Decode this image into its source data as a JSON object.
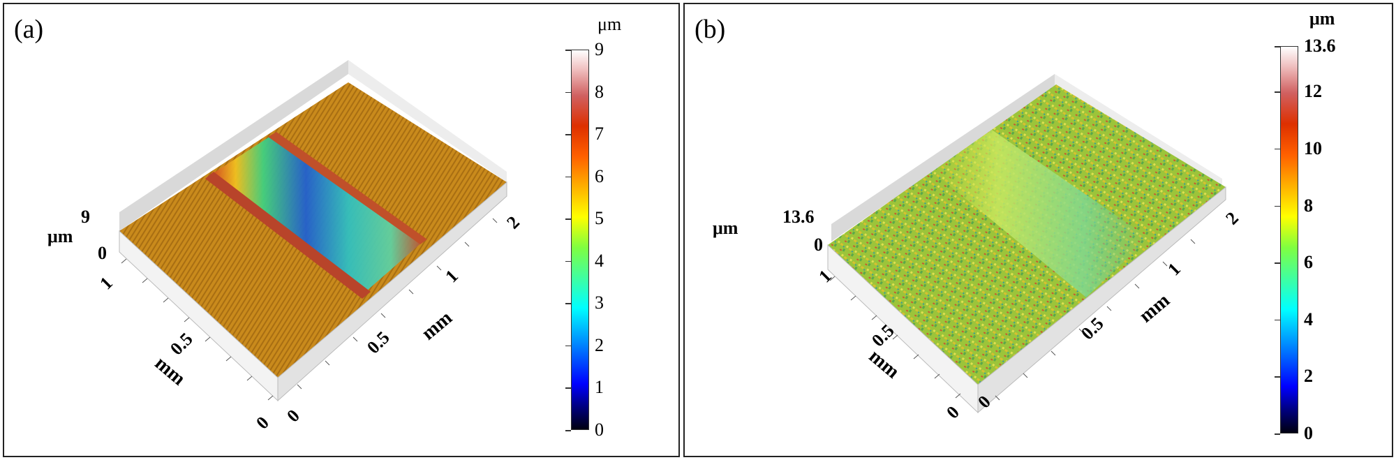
{
  "panels": {
    "a": {
      "label": "(a)",
      "z_unit": "μm",
      "z_max_label": "9",
      "z_min_label": "0",
      "x_axis_label": "mm",
      "x_ticks": [
        "0",
        "0.5",
        "1",
        "2"
      ],
      "y_axis_label": "mm",
      "y_ticks": [
        "0",
        "0.5",
        "1"
      ],
      "colorbar": {
        "unit": "μm",
        "ticks": [
          "9",
          "8",
          "7",
          "6",
          "5",
          "4",
          "3",
          "2",
          "1",
          "0"
        ]
      }
    },
    "b": {
      "label": "(b)",
      "z_unit": "μm",
      "z_max_label": "13.6",
      "z_min_label": "0",
      "x_axis_label": "mm",
      "x_ticks": [
        "0",
        "0.5",
        "1",
        "2"
      ],
      "y_axis_label": "mm",
      "y_ticks": [
        "0",
        "0.5",
        "1"
      ],
      "colorbar": {
        "unit": "μm",
        "ticks": [
          "13.6",
          "12",
          "10",
          "8",
          "6",
          "4",
          "2",
          "0"
        ]
      }
    }
  },
  "colors": {
    "surface_a": "#c98a1c",
    "groove_a": "#2fbfb0",
    "ridge_a": "#c0502a",
    "surface_b": "#9cc43a",
    "groove_b": "#b8e060"
  }
}
